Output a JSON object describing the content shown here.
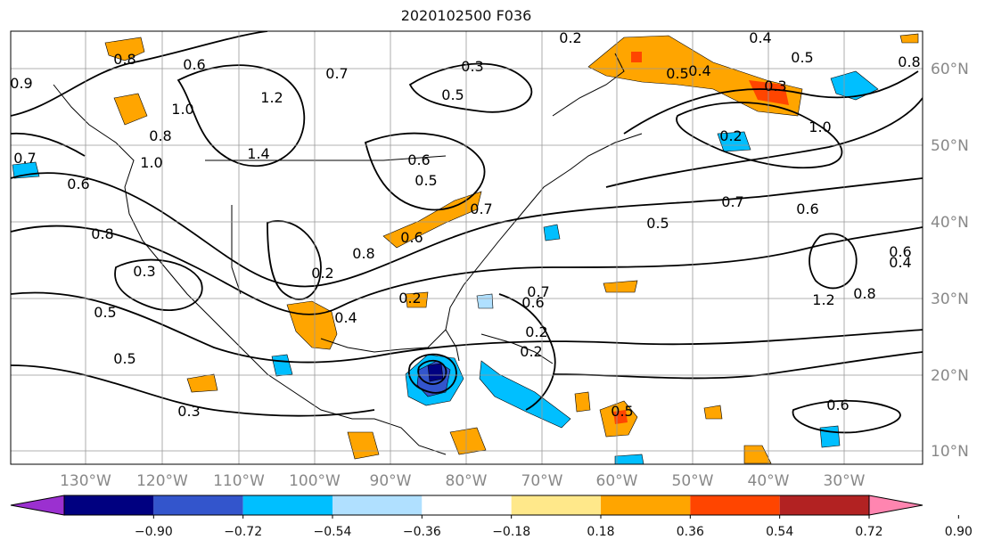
{
  "title": "2020102500 F036",
  "longitude_labels": [
    "130°W",
    "120°W",
    "110°W",
    "100°W",
    "90°W",
    "80°W",
    "70°W",
    "60°W",
    "50°W",
    "40°W",
    "30°W"
  ],
  "latitude_labels": [
    "60°N",
    "50°N",
    "40°N",
    "30°N",
    "20°N",
    "10°N"
  ],
  "colorbar": {
    "ticks": [
      "−0.90",
      "−0.72",
      "−0.54",
      "−0.36",
      "−0.18",
      "0.18",
      "0.36",
      "0.54",
      "0.72",
      "0.90"
    ],
    "colors": [
      "#9b30d0",
      "#000080",
      "#3355cc",
      "#00bfff",
      "#b0e0ff",
      "#ffffff",
      "#ffe88a",
      "#ffa500",
      "#ff4500",
      "#b22222",
      "#ff85b0"
    ]
  },
  "contour_labels": [
    "0.8",
    "0.6",
    "1.0",
    "0.8",
    "0.7",
    "1.2",
    "0.4",
    "0.3",
    "0.2",
    "0.4",
    "0.5",
    "0.8",
    "1.0",
    "0.7",
    "0.6",
    "0.8",
    "1.4",
    "0.2",
    "0.6",
    "1.0",
    "0.7",
    "0.6",
    "0.8",
    "0.5",
    "0.7",
    "0.6",
    "0.8",
    "1.2",
    "0.6",
    "0.4",
    "0.2",
    "0.3",
    "0.5",
    "0.5",
    "0.3",
    "0.2",
    "0.2",
    "0.7",
    "0.6",
    "0.5",
    "0.5",
    "0.6",
    "0.4",
    "0.5",
    "0.2",
    "0.5",
    "0.3",
    "0.9"
  ]
}
